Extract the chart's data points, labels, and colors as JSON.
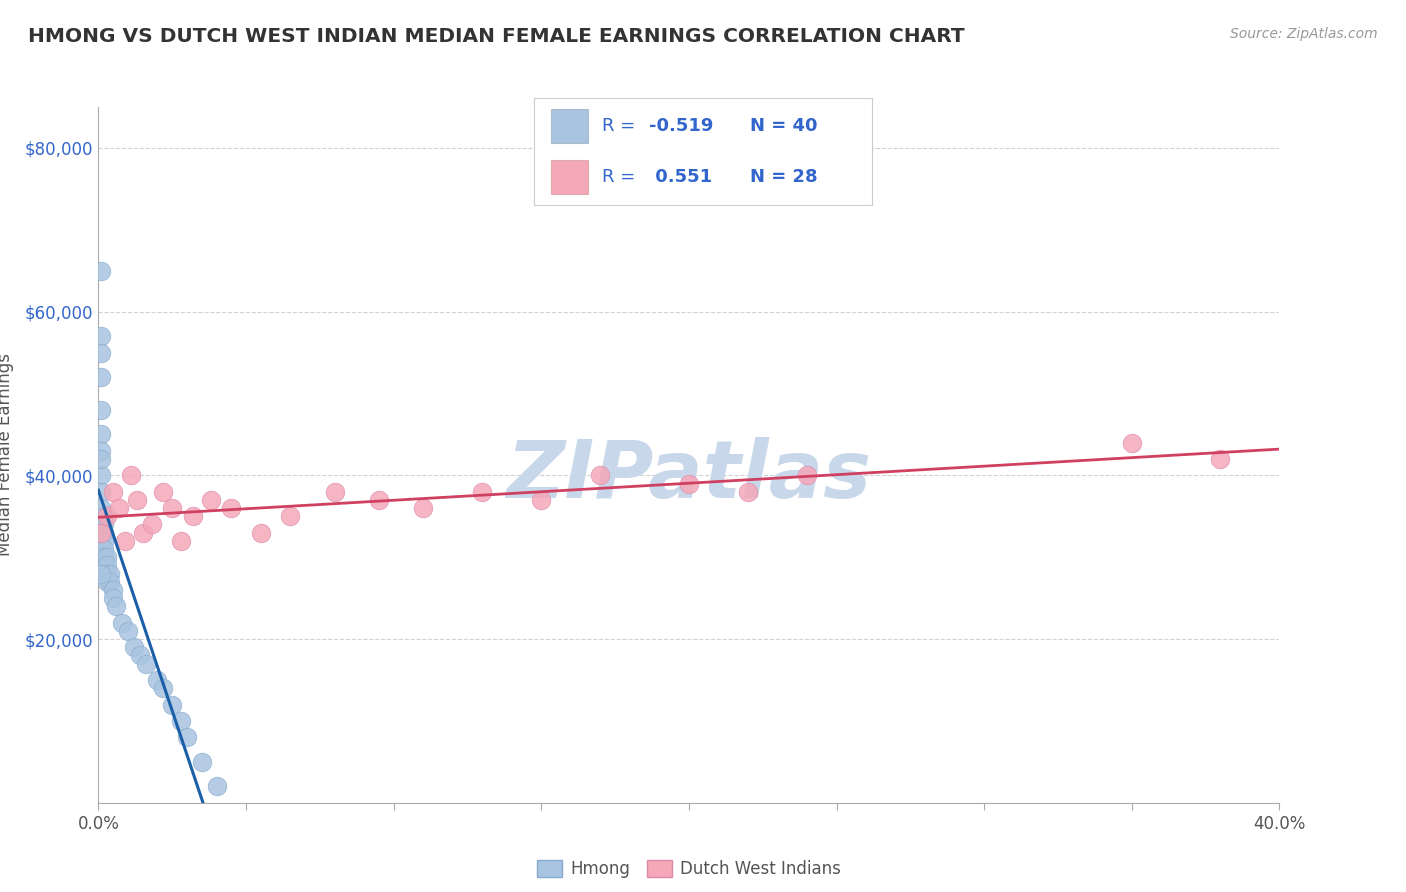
{
  "title": "HMONG VS DUTCH WEST INDIAN MEDIAN FEMALE EARNINGS CORRELATION CHART",
  "source": "Source: ZipAtlas.com",
  "ylabel": "Median Female Earnings",
  "xlim": [
    0.0,
    0.4
  ],
  "ylim": [
    0,
    85000
  ],
  "hmong_color": "#a8c4e0",
  "hmong_edge_color": "#88aacc",
  "dwi_color": "#f4a8b8",
  "dwi_edge_color": "#dd88aa",
  "hmong_line_color": "#1a5fa8",
  "dwi_line_color": "#d04060",
  "watermark": "ZIPatlas",
  "watermark_color": "#c8d8ea",
  "background_color": "#ffffff",
  "grid_color": "#cccccc",
  "title_color": "#333333",
  "legend_text_color": "#3366cc",
  "legend_r_label_color": "#333333",
  "hmong_R": -0.519,
  "dwi_R": 0.551,
  "hmong_N": 40,
  "dwi_N": 28,
  "hmong_x": [
    0.001,
    0.001,
    0.001,
    0.001,
    0.001,
    0.001,
    0.001,
    0.001,
    0.001,
    0.002,
    0.002,
    0.002,
    0.002,
    0.002,
    0.002,
    0.002,
    0.003,
    0.003,
    0.003,
    0.003,
    0.004,
    0.004,
    0.005,
    0.005,
    0.006,
    0.008,
    0.01,
    0.012,
    0.014,
    0.016,
    0.02,
    0.022,
    0.025,
    0.028,
    0.03,
    0.035,
    0.04,
    0.001,
    0.001,
    0.001
  ],
  "hmong_y": [
    65000,
    57000,
    55000,
    52000,
    45000,
    43000,
    40000,
    38000,
    36000,
    35000,
    34000,
    33000,
    32000,
    31000,
    30000,
    29000,
    30000,
    29000,
    28000,
    27000,
    28000,
    27000,
    26000,
    25000,
    24000,
    22000,
    21000,
    19000,
    18000,
    17000,
    15000,
    14000,
    12000,
    10000,
    8000,
    5000,
    2000,
    48000,
    42000,
    28000
  ],
  "dwi_x": [
    0.001,
    0.003,
    0.005,
    0.007,
    0.009,
    0.011,
    0.013,
    0.015,
    0.018,
    0.022,
    0.025,
    0.028,
    0.032,
    0.038,
    0.045,
    0.055,
    0.065,
    0.08,
    0.095,
    0.11,
    0.13,
    0.15,
    0.17,
    0.2,
    0.22,
    0.24,
    0.35,
    0.38
  ],
  "dwi_y": [
    33000,
    35000,
    38000,
    36000,
    32000,
    40000,
    37000,
    33000,
    34000,
    38000,
    36000,
    32000,
    35000,
    37000,
    36000,
    33000,
    35000,
    38000,
    37000,
    36000,
    38000,
    37000,
    40000,
    39000,
    38000,
    40000,
    44000,
    42000
  ]
}
